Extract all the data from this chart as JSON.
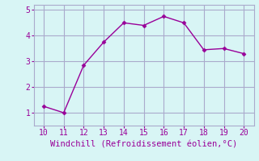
{
  "x": [
    10,
    11,
    12,
    13,
    14,
    15,
    16,
    17,
    18,
    19,
    20
  ],
  "y": [
    1.25,
    1.0,
    2.85,
    3.75,
    4.5,
    4.4,
    4.75,
    4.5,
    3.45,
    3.5,
    3.3
  ],
  "line_color": "#990099",
  "marker": "D",
  "marker_size": 2.5,
  "bg_color": "#d8f5f5",
  "grid_color": "#aaaacc",
  "xlabel": "Windchill (Refroidissement éolien,°C)",
  "xlabel_color": "#990099",
  "xlabel_fontsize": 7.5,
  "tick_color": "#990099",
  "tick_fontsize": 7,
  "xlim": [
    9.5,
    20.5
  ],
  "ylim": [
    0.5,
    5.2
  ],
  "yticks": [
    1,
    2,
    3,
    4,
    5
  ],
  "xticks": [
    10,
    11,
    12,
    13,
    14,
    15,
    16,
    17,
    18,
    19,
    20
  ],
  "grid_alpha": 1.0,
  "line_width": 1.0,
  "font_family": "monospace"
}
